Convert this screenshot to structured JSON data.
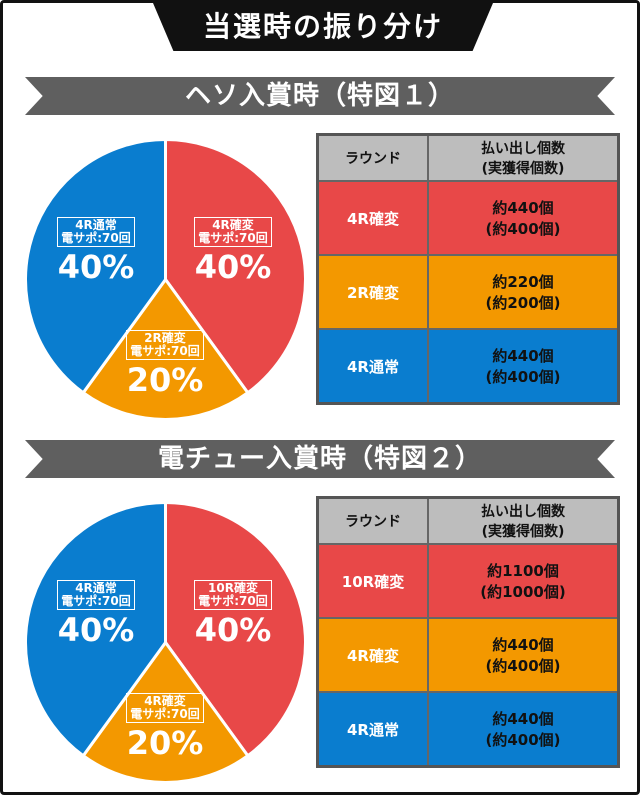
{
  "page_title": "当選時の振り分け",
  "colors": {
    "red": "#e84848",
    "orange": "#f39800",
    "blue": "#0a7dcf",
    "banner": "#5f5f5f"
  },
  "chart_data": [
    {
      "type": "pie",
      "title": "ヘソ入賞時（特図１）",
      "slices": [
        {
          "name": "4R確変",
          "sub": "電サポ:70回",
          "value": 40,
          "label": "40%",
          "color": "#e84848"
        },
        {
          "name": "2R確変",
          "sub": "電サポ:70回",
          "value": 20,
          "label": "20%",
          "color": "#f39800"
        },
        {
          "name": "4R通常",
          "sub": "電サポ:70回",
          "value": 40,
          "label": "40%",
          "color": "#0a7dcf"
        }
      ],
      "table": {
        "headers": [
          "ラウンド",
          "払い出し個数",
          "(実獲得個数)"
        ],
        "rows": [
          {
            "round": "4R確変",
            "pay": "約440個",
            "actual": "(約400個)",
            "color": "#e84848"
          },
          {
            "round": "2R確変",
            "pay": "約220個",
            "actual": "(約200個)",
            "color": "#f39800"
          },
          {
            "round": "4R通常",
            "pay": "約440個",
            "actual": "(約400個)",
            "color": "#0a7dcf"
          }
        ]
      }
    },
    {
      "type": "pie",
      "title": "電チュー入賞時（特図２）",
      "slices": [
        {
          "name": "10R確変",
          "sub": "電サポ:70回",
          "value": 40,
          "label": "40%",
          "color": "#e84848"
        },
        {
          "name": "4R確変",
          "sub": "電サポ:70回",
          "value": 20,
          "label": "20%",
          "color": "#f39800"
        },
        {
          "name": "4R通常",
          "sub": "電サポ:70回",
          "value": 40,
          "label": "40%",
          "color": "#0a7dcf"
        }
      ],
      "table": {
        "headers": [
          "ラウンド",
          "払い出し個数",
          "(実獲得個数)"
        ],
        "rows": [
          {
            "round": "10R確変",
            "pay": "約1100個",
            "actual": "(約1000個)",
            "color": "#e84848"
          },
          {
            "round": "4R確変",
            "pay": "約440個",
            "actual": "(約400個)",
            "color": "#f39800"
          },
          {
            "round": "4R通常",
            "pay": "約440個",
            "actual": "(約400個)",
            "color": "#0a7dcf"
          }
        ]
      }
    }
  ]
}
